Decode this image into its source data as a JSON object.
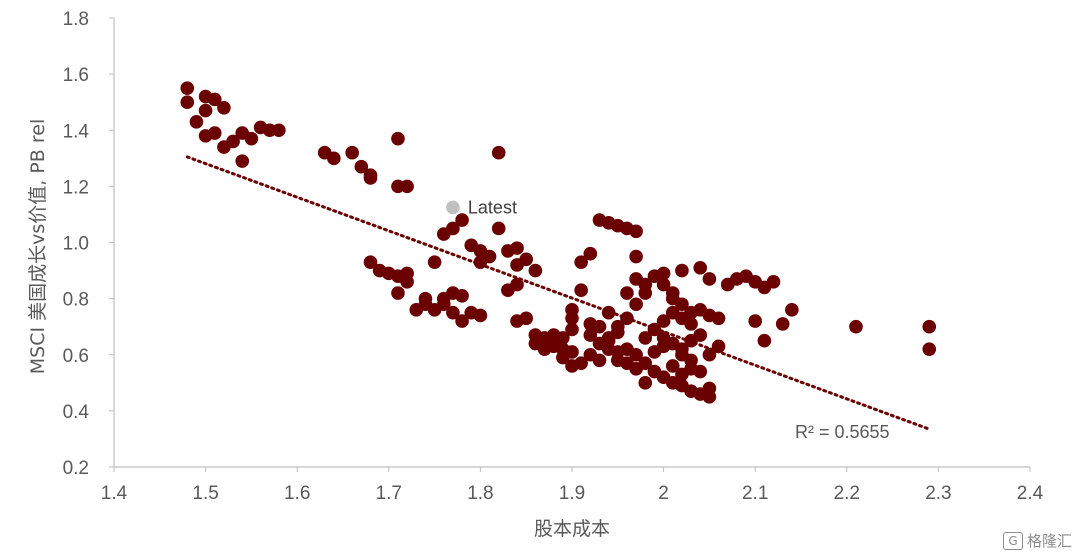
{
  "chart_data": {
    "type": "scatter",
    "xlabel": "股本成本",
    "ylabel": "MSCI 美国成长vs价值, PB rel",
    "xlim": [
      1.4,
      2.4
    ],
    "ylim": [
      0.2,
      1.8
    ],
    "x_ticks": [
      "1.4",
      "1.5",
      "1.6",
      "1.7",
      "1.8",
      "1.9",
      "2",
      "2.1",
      "2.2",
      "2.3",
      "2.4"
    ],
    "y_ticks": [
      "0.2",
      "0.4",
      "0.6",
      "0.8",
      "1.0",
      "1.2",
      "1.4",
      "1.6",
      "1.8"
    ],
    "colors": {
      "points": "#6b0000",
      "latest": "#c0c0c0",
      "trend": "#6b0000",
      "axis": "#bfbfbf"
    },
    "trendline": {
      "style": "dotted",
      "x": [
        1.48,
        2.29
      ],
      "y": [
        1.305,
        0.335
      ],
      "label": "R² = 0.5655"
    },
    "latest": {
      "label": "Latest",
      "x": 1.77,
      "y": 1.125
    },
    "series": [
      {
        "points": [
          [
            1.48,
            1.55
          ],
          [
            1.48,
            1.5
          ],
          [
            1.49,
            1.43
          ],
          [
            1.5,
            1.52
          ],
          [
            1.5,
            1.47
          ],
          [
            1.51,
            1.51
          ],
          [
            1.52,
            1.48
          ],
          [
            1.5,
            1.38
          ],
          [
            1.51,
            1.39
          ],
          [
            1.52,
            1.34
          ],
          [
            1.53,
            1.36
          ],
          [
            1.54,
            1.39
          ],
          [
            1.55,
            1.37
          ],
          [
            1.56,
            1.41
          ],
          [
            1.57,
            1.4
          ],
          [
            1.58,
            1.4
          ],
          [
            1.54,
            1.29
          ],
          [
            1.63,
            1.32
          ],
          [
            1.64,
            1.3
          ],
          [
            1.66,
            1.32
          ],
          [
            1.67,
            1.27
          ],
          [
            1.68,
            1.24
          ],
          [
            1.68,
            1.23
          ],
          [
            1.71,
            1.37
          ],
          [
            1.71,
            1.2
          ],
          [
            1.72,
            1.2
          ],
          [
            1.82,
            1.32
          ],
          [
            1.68,
            0.93
          ],
          [
            1.69,
            0.9
          ],
          [
            1.7,
            0.89
          ],
          [
            1.71,
            0.88
          ],
          [
            1.72,
            0.86
          ],
          [
            1.71,
            0.82
          ],
          [
            1.72,
            0.89
          ],
          [
            1.73,
            0.76
          ],
          [
            1.74,
            0.78
          ],
          [
            1.74,
            0.8
          ],
          [
            1.75,
            0.76
          ],
          [
            1.76,
            0.8
          ],
          [
            1.76,
            0.78
          ],
          [
            1.77,
            0.82
          ],
          [
            1.78,
            0.81
          ],
          [
            1.77,
            0.75
          ],
          [
            1.78,
            0.72
          ],
          [
            1.79,
            0.75
          ],
          [
            1.8,
            0.74
          ],
          [
            1.75,
            0.93
          ],
          [
            1.76,
            1.03
          ],
          [
            1.77,
            1.05
          ],
          [
            1.78,
            1.08
          ],
          [
            1.79,
            0.99
          ],
          [
            1.8,
            0.97
          ],
          [
            1.8,
            0.93
          ],
          [
            1.81,
            0.95
          ],
          [
            1.82,
            1.05
          ],
          [
            1.83,
            0.97
          ],
          [
            1.84,
            0.98
          ],
          [
            1.84,
            0.92
          ],
          [
            1.85,
            0.94
          ],
          [
            1.86,
            0.9
          ],
          [
            1.84,
            0.85
          ],
          [
            1.83,
            0.83
          ],
          [
            1.84,
            0.72
          ],
          [
            1.85,
            0.73
          ],
          [
            1.86,
            0.67
          ],
          [
            1.87,
            0.66
          ],
          [
            1.88,
            0.67
          ],
          [
            1.89,
            0.66
          ],
          [
            1.87,
            0.62
          ],
          [
            1.89,
            0.62
          ],
          [
            1.9,
            0.61
          ],
          [
            1.9,
            0.69
          ],
          [
            1.9,
            0.73
          ],
          [
            1.9,
            0.76
          ],
          [
            1.91,
            0.83
          ],
          [
            1.91,
            0.93
          ],
          [
            1.92,
            0.96
          ],
          [
            1.93,
            1.08
          ],
          [
            1.94,
            1.07
          ],
          [
            1.95,
            1.06
          ],
          [
            1.96,
            1.05
          ],
          [
            1.97,
            1.04
          ],
          [
            1.97,
            0.95
          ],
          [
            1.92,
            0.71
          ],
          [
            1.93,
            0.7
          ],
          [
            1.94,
            0.65
          ],
          [
            1.95,
            0.61
          ],
          [
            1.95,
            0.58
          ],
          [
            1.96,
            0.57
          ],
          [
            1.97,
            0.55
          ],
          [
            1.93,
            0.64
          ],
          [
            1.94,
            0.62
          ],
          [
            1.95,
            0.68
          ],
          [
            1.96,
            0.73
          ],
          [
            1.97,
            0.78
          ],
          [
            1.98,
            0.82
          ],
          [
            1.98,
            0.85
          ],
          [
            1.99,
            0.88
          ],
          [
            2.0,
            0.85
          ],
          [
            2.01,
            0.82
          ],
          [
            2.01,
            0.8
          ],
          [
            2.02,
            0.78
          ],
          [
            2.03,
            0.75
          ],
          [
            2.04,
            0.76
          ],
          [
            2.05,
            0.74
          ],
          [
            1.99,
            0.69
          ],
          [
            2.0,
            0.66
          ],
          [
            2.01,
            0.64
          ],
          [
            2.02,
            0.62
          ],
          [
            2.02,
            0.6
          ],
          [
            2.03,
            0.58
          ],
          [
            2.03,
            0.55
          ],
          [
            2.04,
            0.54
          ],
          [
            2.0,
            0.52
          ],
          [
            2.01,
            0.5
          ],
          [
            2.02,
            0.49
          ],
          [
            2.03,
            0.47
          ],
          [
            2.04,
            0.46
          ],
          [
            2.05,
            0.45
          ],
          [
            2.05,
            0.48
          ],
          [
            2.05,
            0.6
          ],
          [
            2.06,
            0.63
          ],
          [
            2.06,
            0.73
          ],
          [
            2.07,
            0.85
          ],
          [
            2.08,
            0.87
          ],
          [
            2.09,
            0.88
          ],
          [
            2.1,
            0.86
          ],
          [
            2.11,
            0.84
          ],
          [
            2.12,
            0.86
          ],
          [
            2.1,
            0.72
          ],
          [
            2.11,
            0.65
          ],
          [
            2.13,
            0.71
          ],
          [
            2.14,
            0.76
          ],
          [
            2.21,
            0.7
          ],
          [
            2.29,
            0.7
          ],
          [
            2.29,
            0.62
          ],
          [
            1.92,
            0.6
          ],
          [
            1.93,
            0.58
          ],
          [
            1.91,
            0.57
          ],
          [
            1.96,
            0.62
          ],
          [
            1.98,
            0.57
          ],
          [
            1.97,
            0.6
          ],
          [
            1.98,
            0.66
          ],
          [
            1.99,
            0.61
          ],
          [
            2.0,
            0.72
          ],
          [
            2.01,
            0.75
          ],
          [
            2.02,
            0.73
          ],
          [
            2.03,
            0.71
          ],
          [
            1.96,
            0.82
          ],
          [
            1.97,
            0.87
          ],
          [
            2.0,
            0.89
          ],
          [
            2.02,
            0.9
          ],
          [
            2.04,
            0.91
          ],
          [
            2.05,
            0.87
          ],
          [
            1.9,
            0.56
          ],
          [
            1.89,
            0.59
          ],
          [
            1.88,
            0.63
          ],
          [
            1.86,
            0.64
          ],
          [
            1.92,
            0.67
          ],
          [
            1.94,
            0.75
          ],
          [
            2.0,
            0.63
          ],
          [
            2.01,
            0.56
          ],
          [
            2.02,
            0.53
          ],
          [
            1.99,
            0.54
          ],
          [
            1.98,
            0.5
          ],
          [
            2.04,
            0.67
          ],
          [
            2.03,
            0.65
          ],
          [
            1.95,
            0.7
          ],
          [
            1.94,
            0.66
          ]
        ]
      }
    ]
  },
  "watermark": {
    "text": "格隆汇"
  }
}
